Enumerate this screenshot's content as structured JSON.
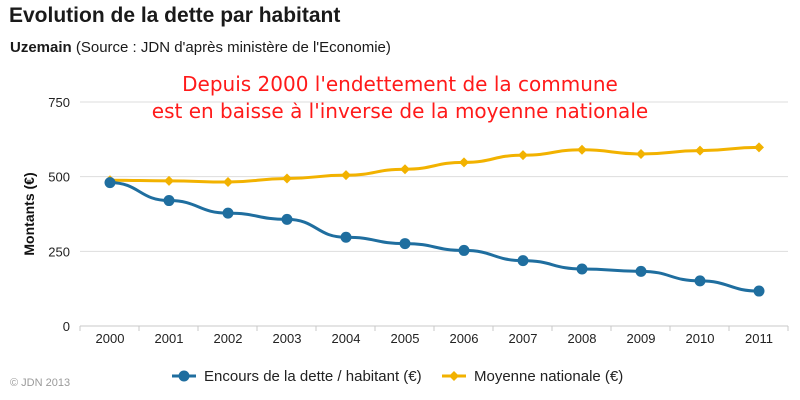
{
  "colors": {
    "series_debt": "#1f6e9f",
    "series_national": "#f2b200",
    "annotation": "#ff1a1a",
    "grid": "#dddddd",
    "copyright": "#9a9a9a"
  },
  "copyright": "© JDN 2013",
  "chart_data": {
    "type": "line",
    "title": "Evolution de la dette par habitant",
    "subtitle_commune": "Uzemain",
    "subtitle_source": " (Source : JDN d'après ministère de l'Economie)",
    "annotation_lines": [
      "Depuis 2000 l'endettement de la commune",
      "est en baisse à l'inverse de la moyenne nationale"
    ],
    "ylabel": "Montants (€)",
    "xlabel": "",
    "ylim": [
      0,
      750
    ],
    "yticks": [
      0,
      250,
      500,
      750
    ],
    "grid": true,
    "legend_position": "bottom",
    "categories": [
      "2000",
      "2001",
      "2002",
      "2003",
      "2004",
      "2005",
      "2006",
      "2007",
      "2008",
      "2009",
      "2010",
      "2011"
    ],
    "series": [
      {
        "name": "Encours de la dette / habitant (€)",
        "marker": "circle",
        "values": [
          480,
          420,
          378,
          357,
          297,
          276,
          253,
          219,
          191,
          183,
          151,
          117
        ]
      },
      {
        "name": "Moyenne nationale (€)",
        "marker": "diamond",
        "values": [
          488,
          486,
          482,
          494,
          505,
          525,
          548,
          572,
          590,
          576,
          587,
          598
        ]
      }
    ]
  }
}
